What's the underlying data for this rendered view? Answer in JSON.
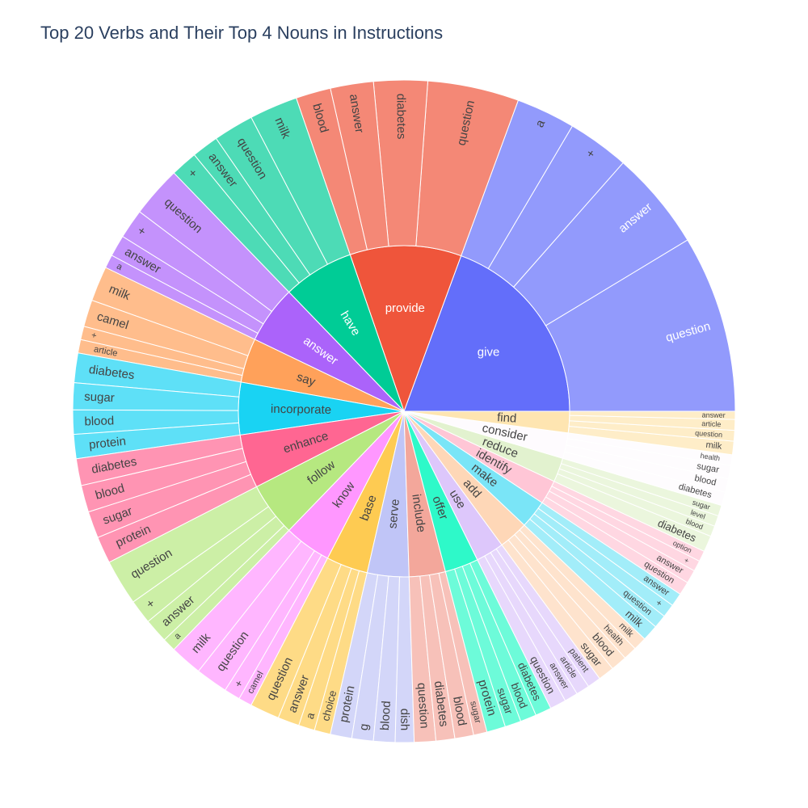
{
  "chart_data": {
    "type": "sunburst",
    "title": "Top 20 Verbs and Their Top 4 Nouns in Instructions",
    "verbs": [
      {
        "name": "give",
        "color": "#636efa",
        "nouns": [
          [
            "question",
            66
          ],
          [
            "answer",
            37
          ],
          [
            "+",
            23
          ],
          [
            "a",
            22
          ]
        ]
      },
      {
        "name": "provide",
        "color": "#ef553b",
        "nouns": [
          [
            "question",
            34
          ],
          [
            "diabetes",
            20
          ],
          [
            "answer",
            16
          ],
          [
            "blood",
            13
          ]
        ]
      },
      {
        "name": "have",
        "color": "#00cc96",
        "nouns": [
          [
            "milk",
            18
          ],
          [
            "question",
            15
          ],
          [
            "answer",
            10
          ],
          [
            "+",
            10
          ]
        ]
      },
      {
        "name": "answer",
        "color": "#ab63fa",
        "nouns": [
          [
            "question",
            19
          ],
          [
            "+",
            11
          ],
          [
            "answer",
            8
          ],
          [
            "a",
            5
          ]
        ]
      },
      {
        "name": "say",
        "color": "#ffa15a",
        "nouns": [
          [
            "milk",
            13
          ],
          [
            "camel",
            10
          ],
          [
            "+",
            5
          ],
          [
            "article",
            5
          ]
        ]
      },
      {
        "name": "incorporate",
        "color": "#19d3f3",
        "nouns": [
          [
            "diabetes",
            11
          ],
          [
            "sugar",
            10
          ],
          [
            "blood",
            9
          ],
          [
            "protein",
            9
          ]
        ]
      },
      {
        "name": "enhance",
        "color": "#ff6692",
        "nouns": [
          [
            "diabetes",
            10
          ],
          [
            "blood",
            10
          ],
          [
            "sugar",
            10
          ],
          [
            "protein",
            10
          ]
        ]
      },
      {
        "name": "follow",
        "color": "#b6e880",
        "nouns": [
          [
            "question",
            17
          ],
          [
            "+",
            9
          ],
          [
            "answer",
            9
          ],
          [
            "a",
            5
          ]
        ]
      },
      {
        "name": "know",
        "color": "#ff97ff",
        "nouns": [
          [
            "milk",
            12
          ],
          [
            "question",
            12
          ],
          [
            "+",
            6
          ],
          [
            "camel",
            5
          ]
        ]
      },
      {
        "name": "base",
        "color": "#fecb52",
        "nouns": [
          [
            "question",
            11
          ],
          [
            "answer",
            8
          ],
          [
            "a",
            6
          ],
          [
            "choice",
            6
          ]
        ]
      },
      {
        "name": "serve",
        "color": "#c0c5f7",
        "nouns": [
          [
            "protein",
            8
          ],
          [
            "g",
            8
          ],
          [
            "blood",
            8
          ],
          [
            "dish",
            7
          ]
        ]
      },
      {
        "name": "include",
        "color": "#f3a79b",
        "nouns": [
          [
            "question",
            8
          ],
          [
            "diabetes",
            7
          ],
          [
            "blood",
            7
          ],
          [
            "sugar",
            5
          ]
        ]
      },
      {
        "name": "offer",
        "color": "#2ef9c9",
        "nouns": [
          [
            "protein",
            7
          ],
          [
            "sugar",
            6
          ],
          [
            "blood",
            6
          ],
          [
            "diabetes",
            6
          ]
        ]
      },
      {
        "name": "use",
        "color": "#ddc7fb",
        "nouns": [
          [
            "question",
            6
          ],
          [
            "answer",
            5
          ],
          [
            "article",
            5
          ],
          [
            "patient",
            5
          ]
        ]
      },
      {
        "name": "add",
        "color": "#fed7b7",
        "nouns": [
          [
            "sugar",
            6
          ],
          [
            "blood",
            6
          ],
          [
            "health",
            5
          ],
          [
            "milk",
            5
          ]
        ]
      },
      {
        "name": "make",
        "color": "#7ae5f7",
        "nouns": [
          [
            "milk",
            6
          ],
          [
            "question",
            5
          ],
          [
            "+",
            5
          ],
          [
            "answer",
            5
          ]
        ]
      },
      {
        "name": "identify",
        "color": "#ffc6d6",
        "nouns": [
          [
            "question",
            5
          ],
          [
            "answer",
            5
          ],
          [
            "+",
            4
          ],
          [
            "option",
            4
          ]
        ]
      },
      {
        "name": "reduce",
        "color": "#e2f2cf",
        "nouns": [
          [
            "diabetes",
            6
          ],
          [
            "blood",
            4
          ],
          [
            "level",
            4
          ],
          [
            "sugar",
            4
          ]
        ]
      },
      {
        "name": "consider",
        "color": "#fefbfe",
        "nouns": [
          [
            "diabetes",
            5
          ],
          [
            "blood",
            5
          ],
          [
            "sugar",
            5
          ],
          [
            "health",
            4
          ]
        ]
      },
      {
        "name": "find",
        "color": "#fee5b1",
        "nouns": [
          [
            "milk",
            5
          ],
          [
            "question",
            4
          ],
          [
            "article",
            4
          ],
          [
            "answer",
            3
          ]
        ]
      }
    ]
  }
}
